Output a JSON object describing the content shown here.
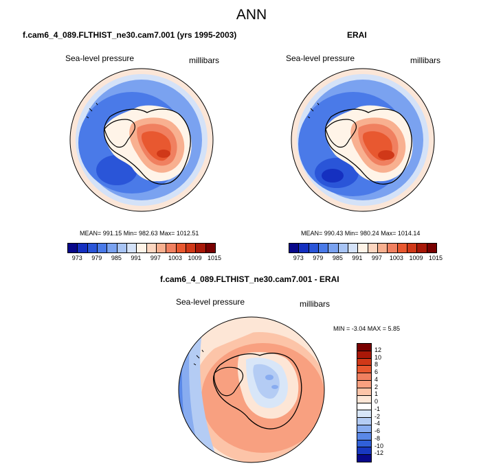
{
  "title": "ANN",
  "panel_left": {
    "case_title": "f.cam6_4_089.FLTHIST_ne30.cam7.001 (yrs 1995-2003)",
    "variable": "Sea-level pressure",
    "units": "millibars",
    "stats": "MEAN= 991.15  Min= 982.63  Max= 1012.51"
  },
  "panel_right": {
    "case_title": "ERAI",
    "variable": "Sea-level pressure",
    "units": "millibars",
    "stats": "MEAN= 990.43  Min= 980.24  Max= 1014.14"
  },
  "panel_diff": {
    "case_title": "f.cam6_4_089.FLTHIST_ne30.cam7.001 - ERAI",
    "variable": "Sea-level pressure",
    "units": "millibars",
    "stats": "MIN =  -3.04 MAX =   5.85"
  },
  "colorbar_top": {
    "colors": [
      "#08088a",
      "#1530c0",
      "#2a55d8",
      "#4a7ae8",
      "#7aa2f0",
      "#a8c4f4",
      "#d4e2f8",
      "#fff4e8",
      "#fcd6c0",
      "#f8b090",
      "#f08060",
      "#e85830",
      "#d03818",
      "#a81808",
      "#780000"
    ],
    "labels": [
      "973",
      "979",
      "985",
      "991",
      "997",
      "1003",
      "1009",
      "1015"
    ]
  },
  "colorbar_diff": {
    "colors": [
      "#780000",
      "#a81808",
      "#d03818",
      "#e85830",
      "#f08060",
      "#f8a080",
      "#fcc4a8",
      "#fde6d6",
      "#ffffff",
      "#d8e6f8",
      "#b4ccf4",
      "#88acf0",
      "#5a88e8",
      "#3060d8",
      "#1838c0",
      "#08088a"
    ],
    "labels": [
      "12",
      "10",
      "8",
      "6",
      "4",
      "2",
      "1",
      "0",
      "-1",
      "-2",
      "-4",
      "-6",
      "-8",
      "-10",
      "-12"
    ]
  }
}
